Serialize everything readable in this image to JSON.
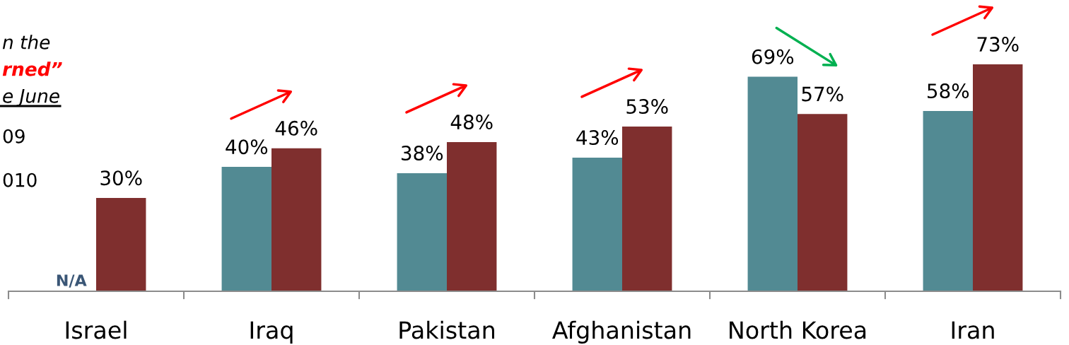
{
  "chart_data": {
    "type": "bar",
    "categories": [
      "Israel",
      "Iraq",
      "Pakistan",
      "Afghanistan",
      "North Korea",
      "Iran"
    ],
    "series": [
      {
        "color": "#528a93",
        "values": [
          null,
          40,
          38,
          43,
          69,
          58
        ],
        "value_labels": [
          "N/A",
          "40%",
          "38%",
          "43%",
          "69%",
          "58%"
        ]
      },
      {
        "color": "#7f2f2e",
        "values": [
          30,
          46,
          48,
          53,
          57,
          73
        ],
        "value_labels": [
          "30%",
          "46%",
          "48%",
          "53%",
          "57%",
          "73%"
        ]
      }
    ],
    "annotations": [
      "n the",
      "rned”",
      "e June",
      "09",
      "010"
    ]
  }
}
